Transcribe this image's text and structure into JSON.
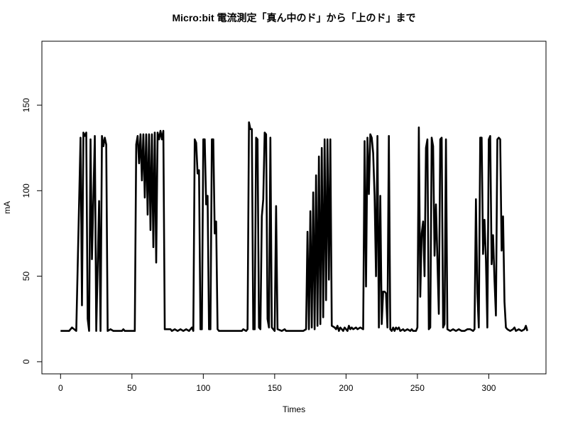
{
  "chart_data": {
    "type": "line",
    "title": "Micro:bit 電流測定「真ん中のド」から「上のド」まで",
    "x_label": "Times",
    "y_label": "mA",
    "x": [
      0,
      6,
      8,
      11,
      14,
      15,
      16,
      17,
      18,
      19,
      20,
      21,
      22,
      24,
      25,
      27,
      28,
      29,
      30,
      31,
      32,
      33,
      35,
      37,
      43,
      44,
      45,
      52,
      53,
      54,
      55,
      56,
      57,
      58,
      59,
      60,
      61,
      62,
      63,
      64,
      65,
      66,
      67,
      68,
      69,
      70,
      71,
      72,
      73,
      77,
      78,
      80,
      82,
      84,
      86,
      88,
      90,
      92,
      93,
      94,
      95,
      96,
      97,
      98,
      99,
      100,
      101,
      102,
      103,
      104,
      105,
      106,
      107,
      108,
      109,
      110,
      111,
      120,
      127,
      128,
      130,
      131,
      132,
      133,
      134,
      135,
      136,
      137,
      138,
      139,
      140,
      141,
      142,
      143,
      144,
      145,
      146,
      147,
      148,
      149,
      150,
      151,
      152,
      155,
      157,
      158,
      170,
      172,
      173,
      174,
      175,
      176,
      177,
      178,
      179,
      180,
      181,
      182,
      183,
      184,
      185,
      186,
      187,
      188,
      189,
      190,
      192,
      193,
      194,
      195,
      196,
      197,
      198,
      199,
      200,
      201,
      202,
      203,
      204,
      205,
      207,
      208,
      210,
      212,
      213,
      214,
      215,
      216,
      217,
      218,
      219,
      220,
      221,
      222,
      223,
      224,
      225,
      226,
      227,
      228,
      229,
      230,
      231,
      232,
      233,
      234,
      235,
      236,
      237,
      238,
      240,
      241,
      243,
      245,
      246,
      247,
      249,
      250,
      251,
      252,
      253,
      254,
      255,
      256,
      257,
      258,
      259,
      260,
      261,
      262,
      263,
      264,
      265,
      266,
      267,
      268,
      269,
      270,
      271,
      273,
      275,
      277,
      279,
      281,
      283,
      285,
      287,
      289,
      290,
      291,
      292,
      293,
      294,
      295,
      296,
      297,
      298,
      299,
      300,
      301,
      302,
      303,
      304,
      305,
      306,
      307,
      308,
      309,
      310,
      311,
      312,
      313,
      315,
      317,
      318,
      319,
      321,
      323,
      325,
      326,
      327
    ],
    "values": [
      18,
      18,
      20,
      18,
      131,
      33,
      134,
      132,
      134,
      25,
      18,
      130,
      60,
      132,
      18,
      94,
      18,
      132,
      126,
      131,
      127,
      18,
      19,
      18,
      18,
      19,
      18,
      18,
      127,
      132,
      116,
      133,
      106,
      133,
      96,
      133,
      86,
      133,
      77,
      133,
      67,
      134,
      58,
      134,
      130,
      135,
      130,
      135,
      19,
      19,
      18,
      19,
      18,
      19,
      18,
      19,
      18,
      20,
      18,
      130,
      128,
      110,
      112,
      19,
      19,
      130,
      130,
      92,
      97,
      19,
      19,
      130,
      130,
      75,
      82,
      19,
      18,
      18,
      18,
      19,
      18,
      19,
      140,
      136,
      136,
      19,
      19,
      131,
      130,
      20,
      19,
      85,
      95,
      134,
      133,
      25,
      20,
      131,
      20,
      19,
      18,
      91,
      19,
      18,
      19,
      18,
      18,
      19,
      76,
      19,
      88,
      20,
      99,
      19,
      109,
      21,
      120,
      22,
      125,
      26,
      130,
      36,
      130,
      48,
      130,
      21,
      20,
      19,
      21,
      18,
      20,
      19,
      18,
      20,
      19,
      18,
      21,
      19,
      20,
      19,
      20,
      19,
      20,
      19,
      129,
      44,
      131,
      98,
      133,
      131,
      122,
      97,
      50,
      132,
      20,
      97,
      22,
      41,
      41,
      40,
      20,
      132,
      19,
      18,
      20,
      18,
      20,
      19,
      20,
      18,
      19,
      18,
      19,
      18,
      19,
      18,
      18,
      20,
      137,
      38,
      75,
      82,
      50,
      125,
      130,
      19,
      20,
      131,
      126,
      62,
      92,
      60,
      28,
      130,
      131,
      20,
      22,
      130,
      19,
      18,
      19,
      18,
      19,
      18,
      18,
      19,
      19,
      18,
      19,
      95,
      40,
      20,
      131,
      131,
      63,
      83,
      60,
      20,
      130,
      132,
      57,
      74,
      48,
      27,
      130,
      131,
      130,
      65,
      85,
      35,
      20,
      19,
      18,
      19,
      20,
      18,
      19,
      18,
      19,
      21,
      18
    ],
    "color": "#000000",
    "xlim": [
      -13.08,
      340.08
    ],
    "ylim": [
      -7.1,
      187.4
    ],
    "xticks": [
      0,
      50,
      100,
      150,
      200,
      250,
      300
    ],
    "yticks": [
      0,
      50,
      100,
      150
    ],
    "grid": false
  }
}
